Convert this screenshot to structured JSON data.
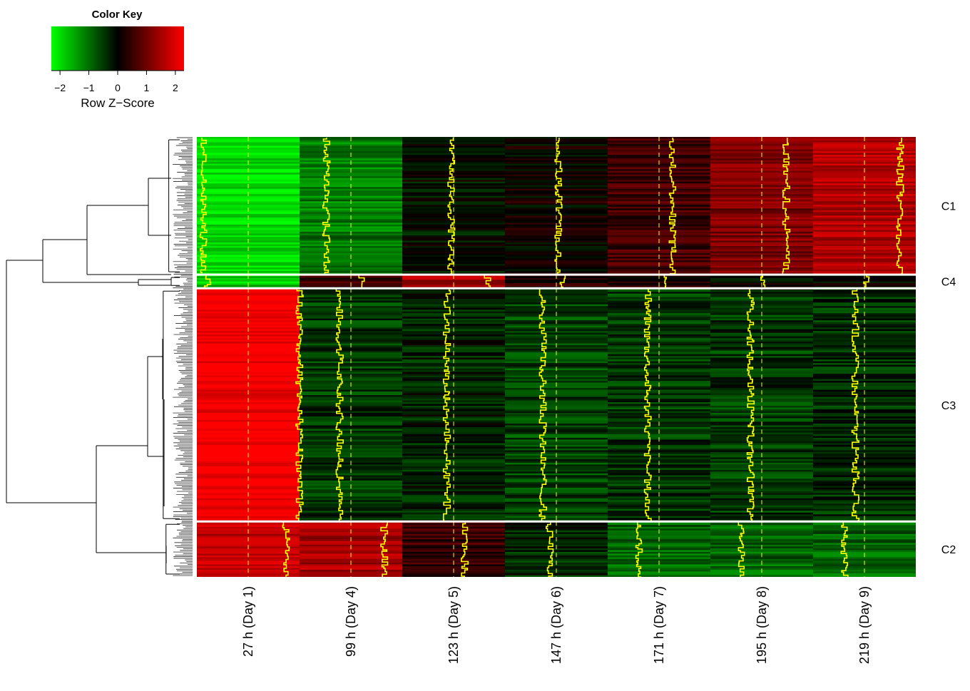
{
  "chart_data": {
    "type": "heatmap",
    "color_key": {
      "title": "Color Key",
      "xlabel": "Row Z−Score",
      "ticks": [
        "−2",
        "−1",
        "0",
        "1",
        "2"
      ],
      "tick_values": [
        -2,
        -1,
        0,
        1,
        2
      ],
      "range": [
        -2.3,
        2.3
      ],
      "low_color": "#00ff00",
      "mid_color": "#000000",
      "high_color": "#ff0000"
    },
    "columns": [
      "27 h (Day 1)",
      "99 h (Day 4)",
      "123 h (Day 5)",
      "147 h (Day 6)",
      "171 h (Day 7)",
      "195 h (Day 8)",
      "219 h (Day 9)"
    ],
    "clusters": [
      {
        "label": "C1",
        "row_fraction": 0.313,
        "mean_zscore": [
          -2.0,
          -1.1,
          -0.1,
          0.1,
          0.6,
          1.1,
          1.6
        ]
      },
      {
        "label": "C4",
        "row_fraction": 0.031,
        "mean_zscore": [
          -1.8,
          0.5,
          1.5,
          0.3,
          0.2,
          0.0,
          0.1
        ]
      },
      {
        "label": "C3",
        "row_fraction": 0.53,
        "mean_zscore": [
          2.3,
          -0.5,
          -0.3,
          -0.6,
          -0.5,
          -0.5,
          -0.4
        ]
      },
      {
        "label": "C2",
        "row_fraction": 0.126,
        "mean_zscore": [
          1.7,
          1.5,
          0.5,
          -0.3,
          -0.9,
          -0.9,
          -0.9
        ]
      }
    ],
    "overlay": {
      "trace_color": "#ffff00",
      "reference_line_color": "#ffff00",
      "reference_line_style": "dashed"
    },
    "dendrogram": "rows",
    "grid": false
  }
}
